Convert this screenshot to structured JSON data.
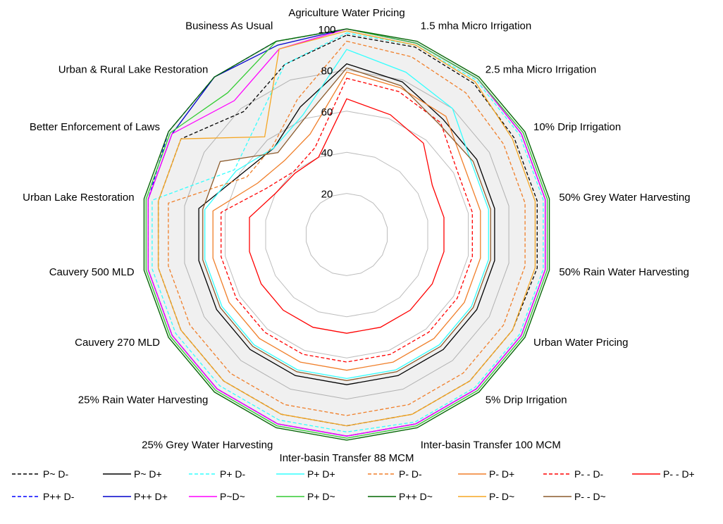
{
  "chart_data": {
    "type": "radar",
    "categories": [
      "Agriculture Water Pricing",
      "1.5 mha Micro Irrigation",
      "2.5 mha Micro Irrigation",
      "10% Drip Irrigation",
      "50% Grey Water Harvesting",
      "50% Rain Water Harvesting",
      "Urban Water Pricing",
      "5% Drip Irrigation",
      "Inter-basin Transfer 100 MCM",
      "Inter-basin Transfer 88 MCM",
      "25% Grey Water Harvesting",
      "25% Rain Water Harvesting",
      "Cauvery 270 MLD",
      "Cauvery 500 MLD",
      "Urban Lake Restoration",
      "Better Enforcement of Laws",
      "Urban & Rural Lake Restoration",
      "Business As Usual"
    ],
    "r_ticks": [
      20,
      40,
      60,
      80,
      100
    ],
    "r_range": [
      0,
      100
    ],
    "grid": true,
    "legend_position": "bottom",
    "band": {
      "lower": "P- - D~",
      "upper": "P++ D~",
      "color": "#e0e0e0"
    },
    "series": [
      {
        "name": "P~ D-",
        "color": "#000000",
        "dash": "dashed",
        "values": [
          97,
          97,
          96,
          94,
          94,
          94,
          93,
          93,
          93,
          93,
          93,
          93,
          93,
          93,
          93,
          93,
          78,
          88
        ]
      },
      {
        "name": "P~ D+",
        "color": "#000000",
        "dash": "solid",
        "values": [
          83,
          79,
          73,
          73,
          73,
          73,
          73,
          73,
          73,
          73,
          73,
          73,
          73,
          73,
          73,
          59,
          55,
          66
        ]
      },
      {
        "name": "P+ D-",
        "color": "#33ffff",
        "dash": "dashed",
        "values": [
          98,
          98,
          98,
          97,
          97,
          97,
          97,
          97,
          97,
          96,
          96,
          96,
          96,
          96,
          96,
          63,
          69,
          88
        ]
      },
      {
        "name": "P+ D+",
        "color": "#33ffff",
        "dash": "solid",
        "values": [
          90,
          84,
          80,
          70,
          70,
          70,
          70,
          70,
          70,
          70,
          70,
          70,
          70,
          70,
          70,
          62,
          55,
          62
        ]
      },
      {
        "name": "P- D-",
        "color": "#f07f2a",
        "dash": "dashed",
        "values": [
          94,
          92,
          90,
          88,
          88,
          88,
          88,
          88,
          88,
          88,
          88,
          88,
          88,
          88,
          88,
          56,
          56,
          70
        ]
      },
      {
        "name": "P- D+",
        "color": "#f07f2a",
        "dash": "solid",
        "values": [
          79,
          76,
          75,
          66,
          66,
          66,
          66,
          66,
          66,
          66,
          66,
          66,
          66,
          66,
          66,
          50,
          47,
          52
        ]
      },
      {
        "name": "P- - D-",
        "color": "#ff0000",
        "dash": "dashed",
        "values": [
          76,
          74,
          71,
          62,
          62,
          62,
          62,
          62,
          62,
          62,
          62,
          62,
          62,
          62,
          62,
          45,
          40,
          45
        ]
      },
      {
        "name": "P- - D+",
        "color": "#ff0000",
        "dash": "solid",
        "values": [
          66,
          62,
          58,
          48,
          48,
          48,
          48,
          48,
          48,
          48,
          48,
          48,
          48,
          48,
          48,
          40,
          39,
          40
        ]
      },
      {
        "name": "P++ D-",
        "color": "#0000ff",
        "dash": "dashed",
        "values": [
          100,
          99,
          99,
          98,
          98,
          98,
          98,
          98,
          98,
          98,
          98,
          98,
          98,
          98,
          98,
          100,
          100,
          100
        ]
      },
      {
        "name": "P++ D+",
        "color": "#0000cc",
        "dash": "solid",
        "values": [
          100,
          99,
          99,
          98,
          98,
          98,
          98,
          98,
          98,
          98,
          98,
          98,
          98,
          98,
          98,
          98,
          100,
          98
        ]
      },
      {
        "name": "P~D~",
        "color": "#ff00ff",
        "dash": "solid",
        "values": [
          100,
          99,
          99,
          98,
          98,
          98,
          98,
          98,
          98,
          98,
          98,
          98,
          98,
          98,
          98,
          98,
          85,
          96
        ]
      },
      {
        "name": "P+ D~",
        "color": "#33cc33",
        "dash": "solid",
        "values": [
          100,
          99,
          99,
          99,
          99,
          99,
          99,
          99,
          99,
          99,
          99,
          99,
          99,
          99,
          99,
          99,
          90,
          100
        ]
      },
      {
        "name": "P++ D~",
        "color": "#006600",
        "dash": "solid",
        "values": [
          100,
          100,
          100,
          100,
          100,
          100,
          100,
          100,
          100,
          100,
          100,
          100,
          100,
          100,
          100,
          100,
          100,
          100
        ]
      },
      {
        "name": "P- D~",
        "color": "#f5a623",
        "dash": "solid",
        "values": [
          99,
          98,
          97,
          93,
          93,
          93,
          93,
          93,
          93,
          93,
          93,
          93,
          93,
          93,
          93,
          93,
          62,
          96
        ]
      },
      {
        "name": "P- - D~",
        "color": "#8b5a2b",
        "dash": "solid",
        "values": [
          81,
          77,
          70,
          71,
          71,
          71,
          71,
          71,
          71,
          71,
          71,
          71,
          71,
          71,
          71,
          71,
          52,
          60
        ]
      }
    ]
  }
}
